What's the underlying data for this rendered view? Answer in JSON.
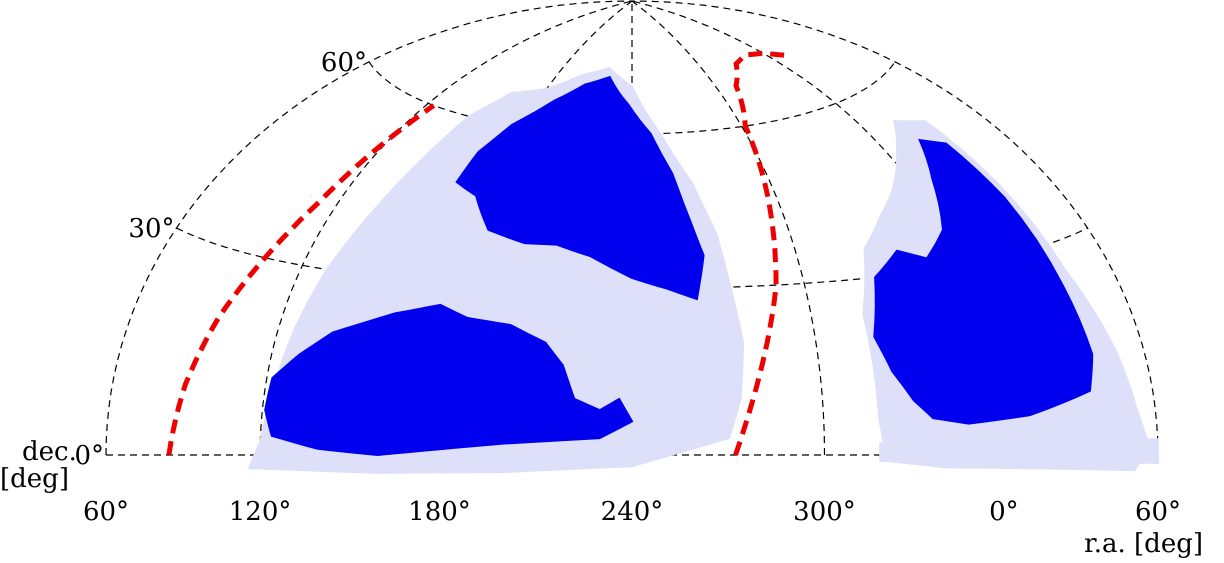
{
  "chart_data": {
    "type": "scatter",
    "projection": "hammer-aitoff",
    "xlabel": "r.a. [deg]",
    "ylabel": "dec.",
    "ylabel_unit": "[deg]",
    "ra_tick_labels": [
      "60°",
      "120°",
      "180°",
      "240°",
      "300°",
      "0°",
      "60°"
    ],
    "ra_ticks": [
      60,
      120,
      180,
      240,
      300,
      360,
      420
    ],
    "dec_tick_labels": [
      "0°",
      "30°",
      "60°"
    ],
    "dec_ticks": [
      0,
      30,
      60
    ],
    "ra_range": [
      60,
      420
    ],
    "dec_range": [
      0,
      90
    ],
    "grid": true,
    "colors": {
      "dense_survey": "#0000ee",
      "sparse_survey": "#dde0f8",
      "boundary": "#ee0000",
      "grid": "#000000"
    },
    "regions": [
      {
        "name": "",
        "fill": "sparse",
        "polygon": [
          [
            116,
            -2
          ],
          [
            120,
            2
          ],
          [
            123,
            10
          ],
          [
            126,
            20
          ],
          [
            130,
            30
          ],
          [
            136,
            40
          ],
          [
            142,
            50
          ],
          [
            148,
            60
          ],
          [
            160,
            66
          ],
          [
            180,
            68
          ],
          [
            200,
            72
          ],
          [
            220,
            74
          ],
          [
            240,
            70
          ],
          [
            255,
            60
          ],
          [
            266,
            50
          ],
          [
            272,
            40
          ],
          [
            274,
            30
          ],
          [
            276,
            20
          ],
          [
            274,
            10
          ],
          [
            270,
            3
          ],
          [
            240,
            -2
          ],
          [
            200,
            -3
          ],
          [
            160,
            -3
          ]
        ]
      },
      {
        "name": "",
        "fill": "dense",
        "polygon": [
          [
            122,
            12
          ],
          [
            130,
            16
          ],
          [
            140,
            20
          ],
          [
            160,
            24
          ],
          [
            175,
            26
          ],
          [
            185,
            24
          ],
          [
            200,
            23
          ],
          [
            212,
            20
          ],
          [
            218,
            16
          ],
          [
            222,
            10
          ],
          [
            230,
            8
          ],
          [
            236,
            10
          ],
          [
            240,
            6
          ],
          [
            230,
            3
          ],
          [
            200,
            2
          ],
          [
            180,
            1
          ],
          [
            160,
            0
          ],
          [
            140,
            1
          ],
          [
            124,
            3
          ],
          [
            121,
            7
          ]
        ]
      },
      {
        "name": "",
        "fill": "dense",
        "polygon": [
          [
            164,
            48
          ],
          [
            175,
            46
          ],
          [
            185,
            40
          ],
          [
            200,
            38
          ],
          [
            212,
            38
          ],
          [
            225,
            36
          ],
          [
            240,
            32
          ],
          [
            252,
            30
          ],
          [
            262,
            28
          ],
          [
            266,
            36
          ],
          [
            262,
            44
          ],
          [
            258,
            52
          ],
          [
            250,
            60
          ],
          [
            238,
            66
          ],
          [
            222,
            72
          ],
          [
            205,
            70
          ],
          [
            190,
            66
          ],
          [
            174,
            60
          ],
          [
            166,
            54
          ]
        ]
      },
      {
        "name": "",
        "fill": "sparse",
        "polygon": [
          [
            318,
            6
          ],
          [
            318,
            24
          ],
          [
            326,
            35
          ],
          [
            338,
            40
          ],
          [
            350,
            44
          ],
          [
            366,
            50
          ],
          [
            378,
            54
          ],
          [
            392,
            52
          ],
          [
            396,
            40
          ],
          [
            400,
            26
          ],
          [
            408,
            14
          ],
          [
            412,
            6
          ],
          [
            416,
            1
          ],
          [
            410,
            -2
          ],
          [
            370,
            -2
          ],
          [
            340,
            -2
          ],
          [
            320,
            -1
          ]
        ]
      },
      {
        "name": "",
        "fill": "dense",
        "polygon": [
          [
            320,
            20
          ],
          [
            326,
            30
          ],
          [
            338,
            34
          ],
          [
            348,
            32
          ],
          [
            360,
            36
          ],
          [
            370,
            44
          ],
          [
            380,
            50
          ],
          [
            390,
            48
          ],
          [
            394,
            38
          ],
          [
            396,
            24
          ],
          [
            398,
            14
          ],
          [
            394,
            9
          ],
          [
            370,
            6
          ],
          [
            348,
            5
          ],
          [
            336,
            6
          ],
          [
            330,
            9
          ],
          [
            324,
            14
          ]
        ]
      },
      {
        "name": "",
        "fill": "sparse",
        "polygon": [
          [
            318,
            2
          ],
          [
            420,
            2
          ],
          [
            420,
            -1
          ],
          [
            318,
            -1
          ]
        ]
      }
    ],
    "boundaries": [
      {
        "name": "",
        "points": [
          [
            86,
            0
          ],
          [
            90,
            10
          ],
          [
            96,
            20
          ],
          [
            104,
            30
          ],
          [
            112,
            40
          ],
          [
            118,
            50
          ],
          [
            124,
            60
          ]
        ]
      },
      {
        "name": "",
        "points": [
          [
            272,
            0
          ],
          [
            278,
            10
          ],
          [
            284,
            20
          ],
          [
            290,
            30
          ],
          [
            294,
            40
          ],
          [
            298,
            50
          ],
          [
            302,
            60
          ],
          [
            314,
            68
          ],
          [
            330,
            72
          ],
          [
            345,
            73
          ],
          [
            360,
            72
          ],
          [
            372,
            70
          ]
        ]
      }
    ]
  }
}
